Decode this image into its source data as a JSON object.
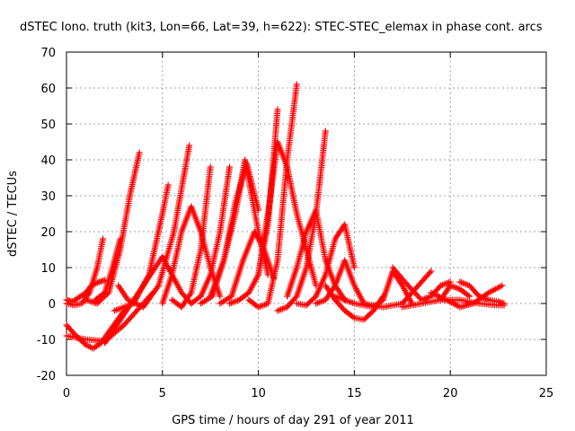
{
  "chart_data": {
    "type": "scatter",
    "title": "dSTEC Iono. truth (kit3, Lon=66, Lat=39, h=622): STEC-STEC_elemax in phase cont. arcs",
    "xlabel": "GPS time / hours of day 291 of year 2011",
    "ylabel": "dSTEC  / TECUs",
    "xlim": [
      0,
      25
    ],
    "ylim": [
      -20,
      70
    ],
    "xticks": [
      0,
      5,
      10,
      15,
      20,
      25
    ],
    "yticks": [
      -20,
      -10,
      0,
      10,
      20,
      30,
      40,
      50,
      60,
      70
    ],
    "grid": true,
    "legend": "none",
    "marker": "plus",
    "color": "#ff0000",
    "series": [
      {
        "x": [
          0.0,
          0.3,
          0.6,
          1.0,
          1.3,
          1.7,
          2.0
        ],
        "y": [
          1.0,
          0.5,
          1.5,
          3.0,
          5.0,
          6.0,
          6.5
        ]
      },
      {
        "x": [
          0.0,
          0.4,
          0.8,
          1.2,
          1.6,
          1.9
        ],
        "y": [
          0.0,
          -0.5,
          0.0,
          3.0,
          10.0,
          18.0
        ]
      },
      {
        "x": [
          0.0,
          0.5,
          1.0,
          1.4,
          1.8,
          2.2,
          2.6,
          3.0
        ],
        "y": [
          -6.0,
          -9.0,
          -11.5,
          -12.5,
          -11.0,
          -8.0,
          -5.0,
          -2.0
        ]
      },
      {
        "x": [
          1.0,
          1.6,
          2.2,
          2.8,
          3.3,
          3.8
        ],
        "y": [
          1.0,
          0.0,
          3.0,
          15.0,
          30.0,
          42.0
        ]
      },
      {
        "x": [
          1.5,
          2.0,
          2.4,
          2.8
        ],
        "y": [
          1.0,
          3.0,
          10.0,
          18.0
        ]
      },
      {
        "x": [
          0.0,
          1.0,
          2.0,
          3.0,
          4.0,
          4.5
        ],
        "y": [
          -9.0,
          -10.0,
          -10.5,
          -6.0,
          0.0,
          3.0
        ]
      },
      {
        "x": [
          2.0,
          3.0,
          4.0,
          5.0,
          5.5,
          6.0,
          6.5
        ],
        "y": [
          -11.0,
          -3.0,
          5.0,
          13.0,
          8.0,
          3.0,
          0.0
        ]
      },
      {
        "x": [
          2.5,
          3.5,
          4.3,
          5.0,
          5.3
        ],
        "y": [
          -2.0,
          0.0,
          8.0,
          25.0,
          33.0
        ]
      },
      {
        "x": [
          2.7,
          3.2,
          4.0,
          4.8,
          5.6,
          6.4
        ],
        "y": [
          5.0,
          1.0,
          -1.0,
          5.0,
          20.0,
          44.0
        ]
      },
      {
        "x": [
          5.0,
          5.5,
          6.0,
          6.5,
          7.0,
          7.5,
          8.0
        ],
        "y": [
          0.0,
          8.0,
          20.0,
          27.0,
          20.0,
          10.0,
          2.0
        ]
      },
      {
        "x": [
          5.5,
          6.0,
          6.5,
          7.0,
          7.5
        ],
        "y": [
          1.0,
          -1.0,
          3.0,
          15.0,
          38.0
        ]
      },
      {
        "x": [
          6.5,
          7.0,
          7.5,
          8.0,
          8.5
        ],
        "y": [
          0.0,
          2.0,
          8.0,
          20.0,
          38.0
        ]
      },
      {
        "x": [
          7.0,
          7.6,
          8.2,
          8.8,
          9.4,
          10.0
        ],
        "y": [
          0.0,
          2.0,
          12.0,
          28.0,
          39.0,
          26.0
        ]
      },
      {
        "x": [
          7.5,
          8.2,
          8.8,
          9.3,
          10.0,
          10.5
        ],
        "y": [
          2.0,
          12.0,
          25.0,
          40.0,
          20.0,
          8.0
        ]
      },
      {
        "x": [
          8.0,
          8.6,
          9.2,
          9.8,
          10.3,
          10.8
        ],
        "y": [
          0.0,
          2.0,
          12.0,
          20.0,
          15.0,
          7.0
        ]
      },
      {
        "x": [
          8.5,
          9.0,
          9.5,
          10.0,
          10.5,
          11.0
        ],
        "y": [
          0.0,
          1.0,
          3.0,
          8.0,
          22.0,
          54.0
        ]
      },
      {
        "x": [
          9.5,
          10.0,
          10.5,
          11.0,
          11.5,
          12.0
        ],
        "y": [
          1.0,
          -1.0,
          0.0,
          12.0,
          40.0,
          61.0
        ]
      },
      {
        "x": [
          10.0,
          10.5,
          11.0,
          11.5,
          12.0,
          12.5,
          13.0
        ],
        "y": [
          8.0,
          25.0,
          45.0,
          38.0,
          25.0,
          15.0,
          5.0
        ]
      },
      {
        "x": [
          11.0,
          11.5,
          12.0,
          12.5,
          13.0,
          13.5
        ],
        "y": [
          -2.0,
          -1.0,
          2.0,
          10.0,
          25.0,
          48.0
        ]
      },
      {
        "x": [
          11.5,
          12.0,
          12.5,
          13.0,
          13.5,
          14.0,
          14.5
        ],
        "y": [
          2.0,
          10.0,
          20.0,
          26.0,
          12.0,
          5.0,
          1.0
        ]
      },
      {
        "x": [
          12.0,
          12.5,
          13.0,
          13.5,
          14.0,
          14.5,
          15.0
        ],
        "y": [
          0.0,
          -0.5,
          2.0,
          8.0,
          18.0,
          22.0,
          10.0
        ]
      },
      {
        "x": [
          13.0,
          13.5,
          14.0,
          14.5,
          15.0,
          15.5
        ],
        "y": [
          0.0,
          1.0,
          5.0,
          12.0,
          5.0,
          0.0
        ]
      },
      {
        "x": [
          13.5,
          14.0,
          14.5,
          15.0,
          15.5,
          16.0,
          16.5
        ],
        "y": [
          5.0,
          1.0,
          -2.0,
          -4.0,
          -4.5,
          -2.0,
          2.0
        ]
      },
      {
        "x": [
          14.0,
          15.0,
          16.0,
          16.5,
          17.0,
          17.5,
          18.0
        ],
        "y": [
          2.0,
          0.0,
          -1.0,
          1.0,
          9.0,
          5.0,
          0.0
        ]
      },
      {
        "x": [
          15.5,
          16.5,
          17.5,
          18.0,
          18.5,
          19.0
        ],
        "y": [
          0.0,
          -1.0,
          0.0,
          3.0,
          6.0,
          9.0
        ]
      },
      {
        "x": [
          17.0,
          17.8,
          18.5,
          19.0,
          19.5,
          20.0
        ],
        "y": [
          10.0,
          5.0,
          1.0,
          2.0,
          5.0,
          6.0
        ]
      },
      {
        "x": [
          17.5,
          18.5,
          19.5,
          20.0,
          20.5,
          21.0
        ],
        "y": [
          -1.0,
          0.0,
          1.0,
          5.0,
          4.0,
          2.0
        ]
      },
      {
        "x": [
          19.0,
          19.8,
          20.5,
          21.2,
          22.0,
          22.7
        ],
        "y": [
          3.0,
          1.0,
          -1.0,
          0.0,
          3.0,
          5.0
        ]
      },
      {
        "x": [
          20.5,
          21.0,
          21.5,
          22.0,
          22.5,
          22.8
        ],
        "y": [
          6.0,
          5.0,
          2.0,
          1.0,
          0.5,
          0.0
        ]
      },
      {
        "x": [
          19.5,
          20.5,
          21.5,
          22.5,
          22.8
        ],
        "y": [
          1.0,
          1.0,
          0.0,
          -0.5,
          -0.5
        ]
      }
    ]
  }
}
